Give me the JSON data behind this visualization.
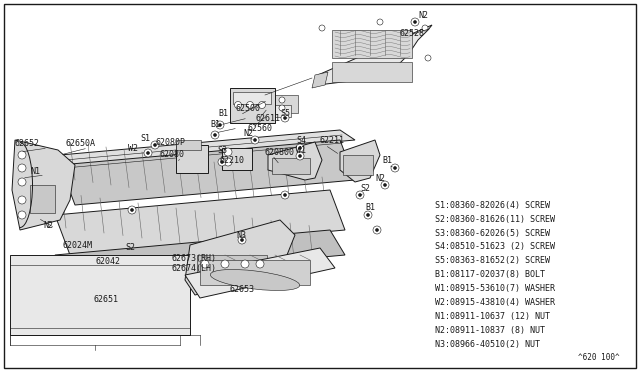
{
  "background_color": "#ffffff",
  "border_color": "#000000",
  "legend_lines": [
    "S1:08360-82026(4) SCREW",
    "S2:08360-81626(11) SCREW",
    "S3:08360-62026(5) SCREW",
    "S4:08510-51623 (2) SCREW",
    "S5:08363-81652(2) SCREW",
    "B1:08117-02037(8) BOLT",
    "W1:08915-53610(7) WASHER",
    "W2:08915-43810(4) WASHER",
    "N1:08911-10637 (12) NUT",
    "N2:08911-10837 (8) NUT",
    "N3:08966-40510(2) NUT"
  ],
  "footnote": "^620 100^",
  "legend_fontsize": 6.0,
  "label_fontsize": 6.0
}
